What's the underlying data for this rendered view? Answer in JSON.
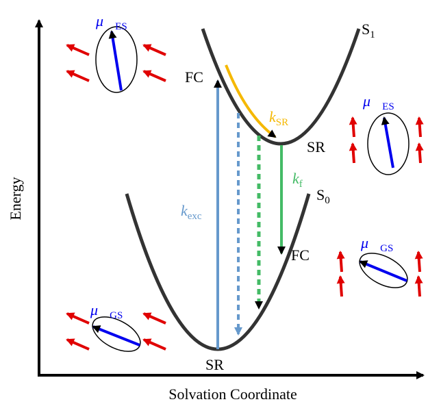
{
  "axes": {
    "y_label": "Energy",
    "x_label": "Solvation Coordinate"
  },
  "curves": [
    {
      "label": "S",
      "subscript": "1"
    },
    {
      "label": "S",
      "subscript": "0"
    }
  ],
  "points": {
    "fc_upper": "FC",
    "sr_upper": "SR",
    "fc_lower": "FC",
    "sr_lower": "SR"
  },
  "rates": [
    {
      "symbol": "k",
      "subscript": "exc"
    },
    {
      "symbol": "k",
      "subscript": "SR"
    },
    {
      "symbol": "k",
      "subscript": "f"
    }
  ],
  "dipoles": [
    {
      "symbol": "μ⃗",
      "subscript": "ES"
    },
    {
      "symbol": "μ⃗",
      "subscript": "ES"
    },
    {
      "symbol": "μ⃗",
      "subscript": "GS"
    },
    {
      "symbol": "μ⃗",
      "subscript": "GS"
    }
  ]
}
